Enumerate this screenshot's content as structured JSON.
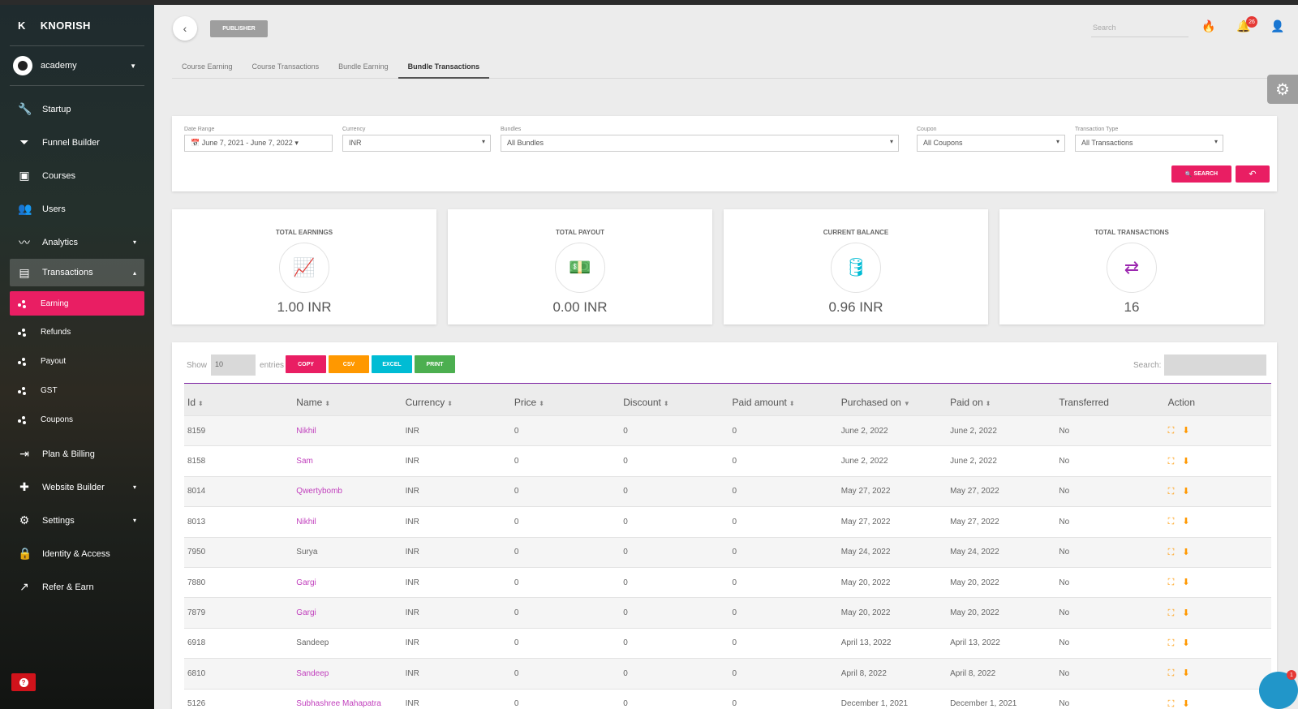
{
  "brand": {
    "initial": "K",
    "name": "KNORISH"
  },
  "account": {
    "name": "academy"
  },
  "sidebar": {
    "items": [
      {
        "label": "Startup",
        "icon": "wrench-icon",
        "glyph": "🔧"
      },
      {
        "label": "Funnel Builder",
        "icon": "funnel-icon",
        "glyph": "⏷"
      },
      {
        "label": "Courses",
        "icon": "courses-icon",
        "glyph": "▣"
      },
      {
        "label": "Users",
        "icon": "users-icon",
        "glyph": "👥"
      },
      {
        "label": "Analytics",
        "icon": "analytics-icon",
        "glyph": "〰",
        "caret": "▾"
      },
      {
        "label": "Transactions",
        "icon": "wallet-icon",
        "glyph": "▤",
        "caret": "▴"
      }
    ],
    "sub_items": [
      {
        "label": "Earning"
      },
      {
        "label": "Refunds"
      },
      {
        "label": "Payout"
      },
      {
        "label": "GST"
      },
      {
        "label": "Coupons"
      }
    ],
    "bottom_items": [
      {
        "label": "Plan & Billing",
        "icon": "login-icon",
        "glyph": "⇥"
      },
      {
        "label": "Website Builder",
        "icon": "puzzle-icon",
        "glyph": "✚",
        "caret": "▾"
      },
      {
        "label": "Settings",
        "icon": "gear-icon",
        "glyph": "⚙",
        "caret": "▾"
      },
      {
        "label": "Identity & Access",
        "icon": "lock-icon",
        "glyph": "🔒"
      },
      {
        "label": "Refer & Earn",
        "icon": "trend-icon",
        "glyph": "↗"
      }
    ],
    "help": "?"
  },
  "header": {
    "badge": "PUBLISHER",
    "search_placeholder": "Search",
    "notification_count": "26"
  },
  "tabs": [
    "Course Earning",
    "Course Transactions",
    "Bundle Earning",
    "Bundle Transactions"
  ],
  "filters": {
    "date_label": "Date Range",
    "date_value": "June 7, 2021 - June 7, 2022",
    "currency_label": "Currency",
    "currency_value": "INR",
    "bundles_label": "Bundles",
    "bundles_value": "All Bundles",
    "coupon_label": "Coupon",
    "coupon_value": "All Coupons",
    "type_label": "Transaction Type",
    "type_value": "All Transactions",
    "search_btn": "SEARCH"
  },
  "stats": [
    {
      "label": "TOTAL EARNINGS",
      "value": "1.00 INR",
      "icon": "chart-line-icon",
      "color": "#e91e63"
    },
    {
      "label": "TOTAL PAYOUT",
      "value": "0.00 INR",
      "icon": "money-icon",
      "color": "#ff9800"
    },
    {
      "label": "CURRENT BALANCE",
      "value": "0.96 INR",
      "icon": "database-icon",
      "color": "#00bcd4"
    },
    {
      "label": "TOTAL TRANSACTIONS",
      "value": "16",
      "icon": "exchange-icon",
      "color": "#9c27b0"
    }
  ],
  "table": {
    "show_label": "Show",
    "entries_value": "10",
    "entries_label": "entries",
    "search_label": "Search:",
    "export_buttons": [
      {
        "label": "COPY",
        "color": "#e91e63"
      },
      {
        "label": "CSV",
        "color": "#ff9800"
      },
      {
        "label": "EXCEL",
        "color": "#00bcd4"
      },
      {
        "label": "PRINT",
        "color": "#4caf50"
      }
    ],
    "columns": [
      "Id",
      "Name",
      "Currency",
      "Price",
      "Discount",
      "Paid amount",
      "Purchased on",
      "Paid on",
      "Transferred",
      "Action"
    ],
    "rows": [
      [
        "8159",
        "Nikhil",
        "INR",
        "0",
        "0",
        "0",
        "June 2, 2022",
        "June 2, 2022",
        "No"
      ],
      [
        "8158",
        "Sam",
        "INR",
        "0",
        "0",
        "0",
        "June 2, 2022",
        "June 2, 2022",
        "No"
      ],
      [
        "8014",
        "Qwertybomb",
        "INR",
        "0",
        "0",
        "0",
        "May 27, 2022",
        "May 27, 2022",
        "No"
      ],
      [
        "8013",
        "Nikhil",
        "INR",
        "0",
        "0",
        "0",
        "May 27, 2022",
        "May 27, 2022",
        "No"
      ],
      [
        "7950",
        "Surya",
        "INR",
        "0",
        "0",
        "0",
        "May 24, 2022",
        "May 24, 2022",
        "No"
      ],
      [
        "7880",
        "Gargi",
        "INR",
        "0",
        "0",
        "0",
        "May 20, 2022",
        "May 20, 2022",
        "No"
      ],
      [
        "7879",
        "Gargi",
        "INR",
        "0",
        "0",
        "0",
        "May 20, 2022",
        "May 20, 2022",
        "No"
      ],
      [
        "6918",
        "Sandeep",
        "INR",
        "0",
        "0",
        "0",
        "April 13, 2022",
        "April 13, 2022",
        "No"
      ],
      [
        "6810",
        "Sandeep",
        "INR",
        "0",
        "0",
        "0",
        "April 8, 2022",
        "April 8, 2022",
        "No"
      ],
      [
        "5126",
        "Subhashree Mahapatra",
        "INR",
        "0",
        "0",
        "0",
        "December 1, 2021",
        "December 1, 2021",
        "No"
      ]
    ],
    "linked_names": [
      true,
      true,
      true,
      true,
      false,
      true,
      true,
      false,
      true,
      true
    ]
  },
  "chat_badge": "1"
}
